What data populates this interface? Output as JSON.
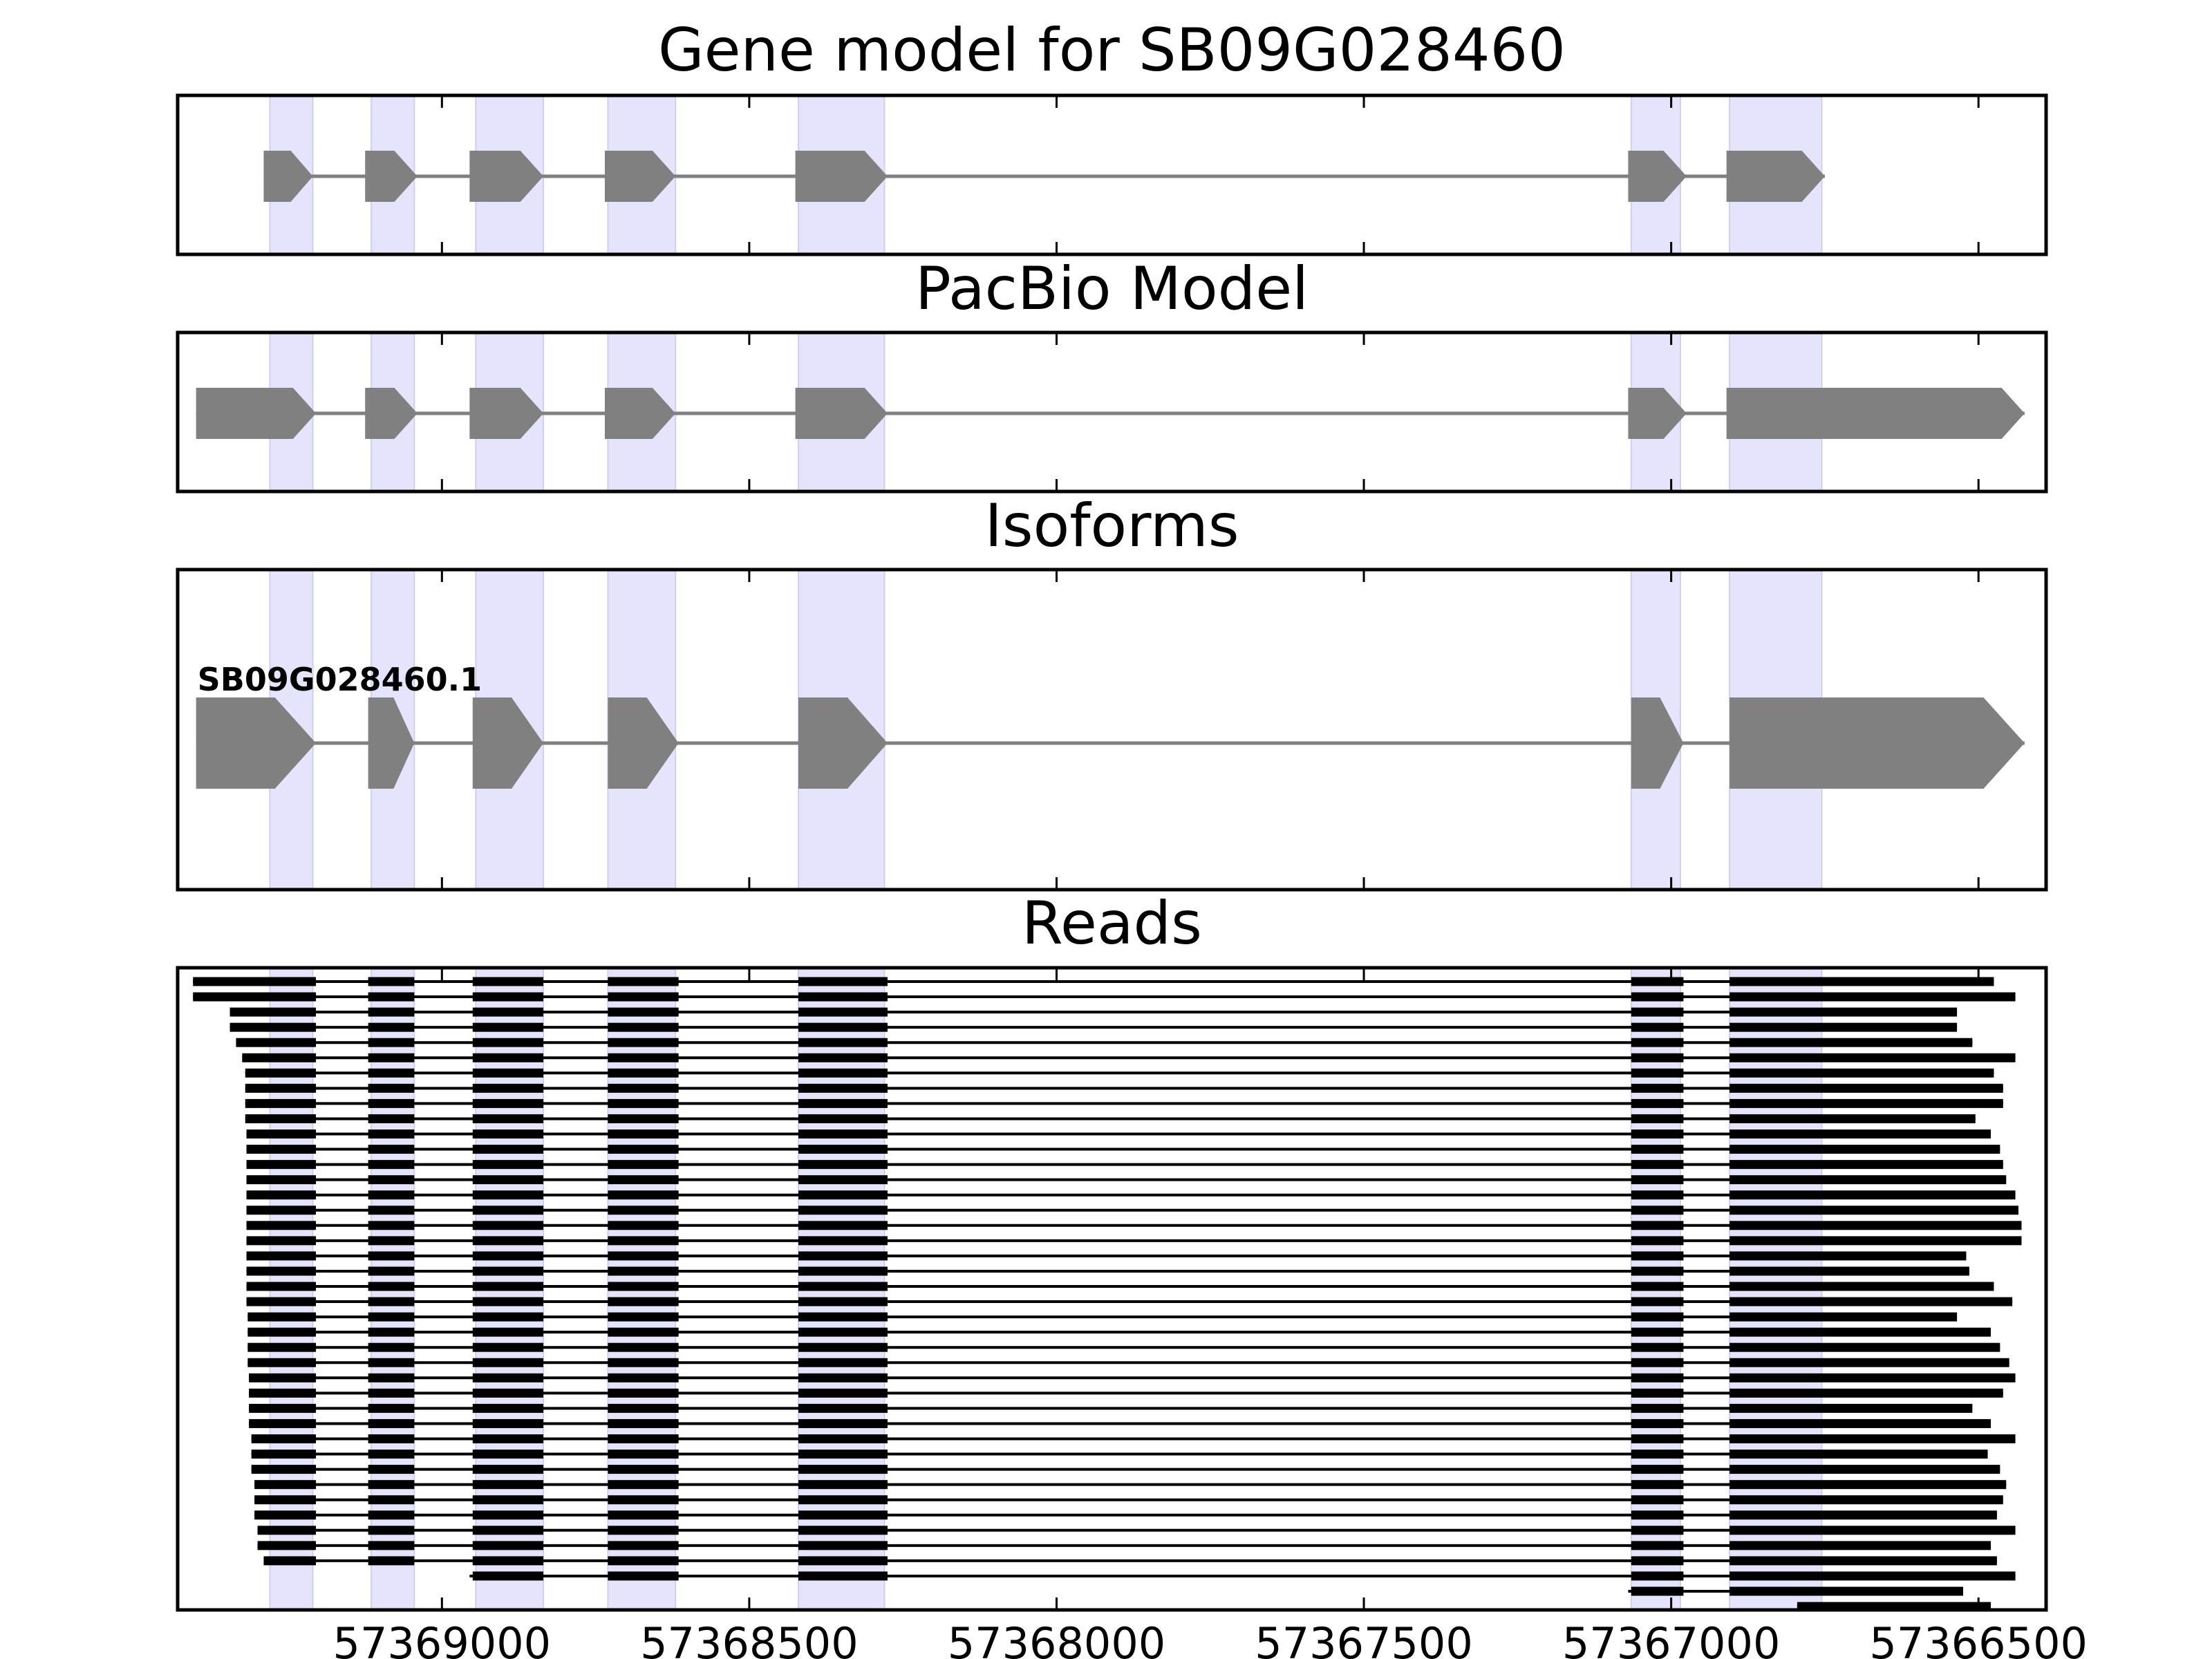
{
  "chart_data": {
    "type": "gene-track",
    "x_axis": {
      "reversed": true,
      "xlim": [
        57369430,
        57366390
      ],
      "ticks": [
        57369000,
        57368500,
        57368000,
        57367500,
        57367000,
        57366500
      ],
      "tick_labels": [
        "57369000",
        "57368500",
        "57368000",
        "57367500",
        "57367000",
        "57366500"
      ]
    },
    "highlight_regions": [
      [
        57369280,
        57369210
      ],
      [
        57369115,
        57369045
      ],
      [
        57368945,
        57368835
      ],
      [
        57368730,
        57368620
      ],
      [
        57368420,
        57368280
      ],
      [
        57367065,
        57366985
      ],
      [
        57366905,
        57366755
      ]
    ],
    "panels": [
      {
        "title": "Gene model for SB09G028460",
        "tracks": [
          {
            "label": "",
            "exons": [
              [
                57369290,
                57369210
              ],
              [
                57369125,
                57369040
              ],
              [
                57368955,
                57368835
              ],
              [
                57368735,
                57368620
              ],
              [
                57368425,
                57368275
              ],
              [
                57367070,
                57366975
              ],
              [
                57366910,
                57366750
              ]
            ]
          }
        ]
      },
      {
        "title": "PacBio Model",
        "tracks": [
          {
            "label": "",
            "exons": [
              [
                57369400,
                57369205
              ],
              [
                57369125,
                57369040
              ],
              [
                57368955,
                57368835
              ],
              [
                57368735,
                57368620
              ],
              [
                57368425,
                57368275
              ],
              [
                57367070,
                57366975
              ],
              [
                57366910,
                57366425
              ]
            ]
          }
        ]
      },
      {
        "title": "Isoforms",
        "tracks": [
          {
            "label": "SB09G028460.1",
            "exons": [
              [
                57369400,
                57369205
              ],
              [
                57369120,
                57369045
              ],
              [
                57368950,
                57368835
              ],
              [
                57368730,
                57368615
              ],
              [
                57368420,
                57368275
              ],
              [
                57367065,
                57366980
              ],
              [
                57366905,
                57366425
              ]
            ]
          }
        ]
      },
      {
        "title": "Reads",
        "read_starts": [
          57369405,
          57369405,
          57369345,
          57369345,
          57369335,
          57369325,
          57369320,
          57369320,
          57369320,
          57369320,
          57369318,
          57369318,
          57369318,
          57369318,
          57369318,
          57369318,
          57369318,
          57369318,
          57369318,
          57369318,
          57369318,
          57369318,
          57369316,
          57369316,
          57369316,
          57369316,
          57369314,
          57369314,
          57369314,
          57369314,
          57369310,
          57369310,
          57369310,
          57369305,
          57369305,
          57369305,
          57369300,
          57369300,
          57369290,
          57368955
        ],
        "read_ends": [
          57366475,
          57366440,
          57366535,
          57366535,
          57366510,
          57366440,
          57366475,
          57366460,
          57366460,
          57366505,
          57366480,
          57366465,
          57366460,
          57366455,
          57366440,
          57366435,
          57366430,
          57366430,
          57366520,
          57366515,
          57366475,
          57366445,
          57366535,
          57366480,
          57366465,
          57366450,
          57366440,
          57366460,
          57366510,
          57366480,
          57366440,
          57366485,
          57366465,
          57366455,
          57366460,
          57366470,
          57366440,
          57366480,
          57366470,
          57366440
        ],
        "partial_reads": [
          {
            "start": 57367070,
            "end": 57366525
          },
          {
            "start": 57366795,
            "end": 57366480
          }
        ]
      }
    ]
  }
}
